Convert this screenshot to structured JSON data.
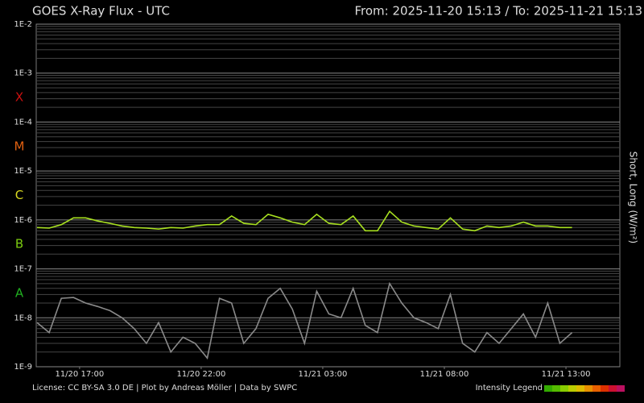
{
  "chart_data": {
    "type": "line",
    "title": "GOES X-Ray Flux - UTC",
    "range_label": "From: 2025-11-20 15:13  /  To: 2025-11-21 15:13",
    "ylabel": "Short, Long (W/m²)",
    "log_scale": true,
    "minor_grid": true,
    "xlim": [
      "2025-11-20T15:13",
      "2025-11-21T15:13"
    ],
    "ylim": [
      1e-09,
      0.01
    ],
    "yticks": [
      {
        "value": 1e-09,
        "label": "1E-9"
      },
      {
        "value": 1e-08,
        "label": "1E-8"
      },
      {
        "value": 1e-07,
        "label": "1E-7"
      },
      {
        "value": 1e-06,
        "label": "1E-6"
      },
      {
        "value": 1e-05,
        "label": "1E-5"
      },
      {
        "value": 0.0001,
        "label": "1E-4"
      },
      {
        "value": 0.001,
        "label": "1E-3"
      },
      {
        "value": 0.01,
        "label": "1E-2"
      }
    ],
    "xticks": [
      {
        "value": "2025-11-20T17:00",
        "label": "11/20 17:00"
      },
      {
        "value": "2025-11-20T22:00",
        "label": "11/20 22:00"
      },
      {
        "value": "2025-11-21T03:00",
        "label": "11/21 03:00"
      },
      {
        "value": "2025-11-21T08:00",
        "label": "11/21 08:00"
      },
      {
        "value": "2025-11-21T13:00",
        "label": "11/21 13:00"
      }
    ],
    "flare_classes": [
      {
        "label": "X",
        "color": "#cc1010"
      },
      {
        "label": "M",
        "color": "#e06010"
      },
      {
        "label": "C",
        "color": "#d8d820"
      },
      {
        "label": "B",
        "color": "#7ccc10"
      },
      {
        "label": "A",
        "color": "#20b020"
      }
    ],
    "x": [
      "2025-11-20T15:15",
      "2025-11-20T15:45",
      "2025-11-20T16:15",
      "2025-11-20T16:45",
      "2025-11-20T17:15",
      "2025-11-20T17:45",
      "2025-11-20T18:15",
      "2025-11-20T18:45",
      "2025-11-20T19:15",
      "2025-11-20T19:45",
      "2025-11-20T20:15",
      "2025-11-20T20:45",
      "2025-11-20T21:15",
      "2025-11-20T21:45",
      "2025-11-20T22:15",
      "2025-11-20T22:45",
      "2025-11-20T23:15",
      "2025-11-20T23:45",
      "2025-11-21T00:15",
      "2025-11-21T00:45",
      "2025-11-21T01:15",
      "2025-11-21T01:45",
      "2025-11-21T02:15",
      "2025-11-21T02:45",
      "2025-11-21T03:15",
      "2025-11-21T03:45",
      "2025-11-21T04:15",
      "2025-11-21T04:45",
      "2025-11-21T05:15",
      "2025-11-21T05:45",
      "2025-11-21T06:15",
      "2025-11-21T06:45",
      "2025-11-21T07:15",
      "2025-11-21T07:45",
      "2025-11-21T08:15",
      "2025-11-21T08:45",
      "2025-11-21T09:15",
      "2025-11-21T09:45",
      "2025-11-21T10:15",
      "2025-11-21T10:45",
      "2025-11-21T11:15",
      "2025-11-21T11:45",
      "2025-11-21T12:15",
      "2025-11-21T12:45",
      "2025-11-21T13:15"
    ],
    "series": [
      {
        "name": "Short",
        "color": "#8a8a8a",
        "values": [
          8e-09,
          5e-09,
          2.5e-08,
          2.6e-08,
          2e-08,
          1.7e-08,
          1.4e-08,
          1e-08,
          6e-09,
          3e-09,
          8e-09,
          2e-09,
          4e-09,
          3e-09,
          1.5e-09,
          2.5e-08,
          2e-08,
          3e-09,
          6e-09,
          2.5e-08,
          4e-08,
          1.5e-08,
          3e-09,
          3.5e-08,
          1.2e-08,
          1e-08,
          4e-08,
          7e-09,
          5e-09,
          5e-08,
          2e-08,
          1e-08,
          8e-09,
          6e-09,
          3e-08,
          3e-09,
          2e-09,
          5e-09,
          3e-09,
          6e-09,
          1.2e-08,
          4e-09,
          2e-08,
          3e-09,
          5e-09
        ]
      },
      {
        "name": "Long",
        "color": "#a8e020",
        "values": [
          7e-07,
          6.8e-07,
          8e-07,
          1.1e-06,
          1.1e-06,
          9.5e-07,
          8.5e-07,
          7.5e-07,
          7e-07,
          6.8e-07,
          6.5e-07,
          7e-07,
          6.8e-07,
          7.5e-07,
          8e-07,
          8e-07,
          1.2e-06,
          8.5e-07,
          8e-07,
          1.3e-06,
          1.1e-06,
          9e-07,
          8e-07,
          1.3e-06,
          8.5e-07,
          8e-07,
          1.2e-06,
          6e-07,
          6e-07,
          1.5e-06,
          9e-07,
          7.5e-07,
          7e-07,
          6.5e-07,
          1.1e-06,
          6.5e-07,
          6e-07,
          7.5e-07,
          7e-07,
          7.5e-07,
          9e-07,
          7.5e-07,
          7.5e-07,
          7e-07,
          7e-07
        ]
      }
    ],
    "license": "License: CC BY-SA 3.0 DE | Plot by Andreas Möller | Data by SWPC",
    "intensity_legend": {
      "label": "Intensity Legend",
      "colors": [
        "#33aa00",
        "#55bb00",
        "#88cc00",
        "#bbcc00",
        "#ddbb00",
        "#e89000",
        "#e86000",
        "#dd3000",
        "#cc1030",
        "#bb1060"
      ]
    }
  }
}
